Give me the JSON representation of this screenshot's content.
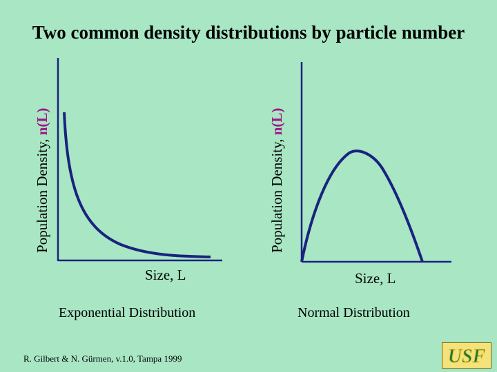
{
  "title": "Two common density distributions by particle number",
  "left_chart": {
    "ylabel_prefix": "Population Density, ",
    "ylabel_var": "n(L)",
    "xlabel": "Size, L",
    "caption": "Exponential Distribution"
  },
  "right_chart": {
    "ylabel_prefix": "Population Density, ",
    "ylabel_var": "n(L)",
    "xlabel": "Size, L",
    "caption": "Normal Distribution"
  },
  "credit": "R. Gilbert & N. Gürmen, v.1.0, Tampa 1999",
  "logo": {
    "text": "USF",
    "fill": "#1e7a3a",
    "outline": "#e8c53a"
  },
  "colors": {
    "background": "#a8e6c4",
    "curve": "#1a237e",
    "ylabel_accent": "#a0168a"
  }
}
